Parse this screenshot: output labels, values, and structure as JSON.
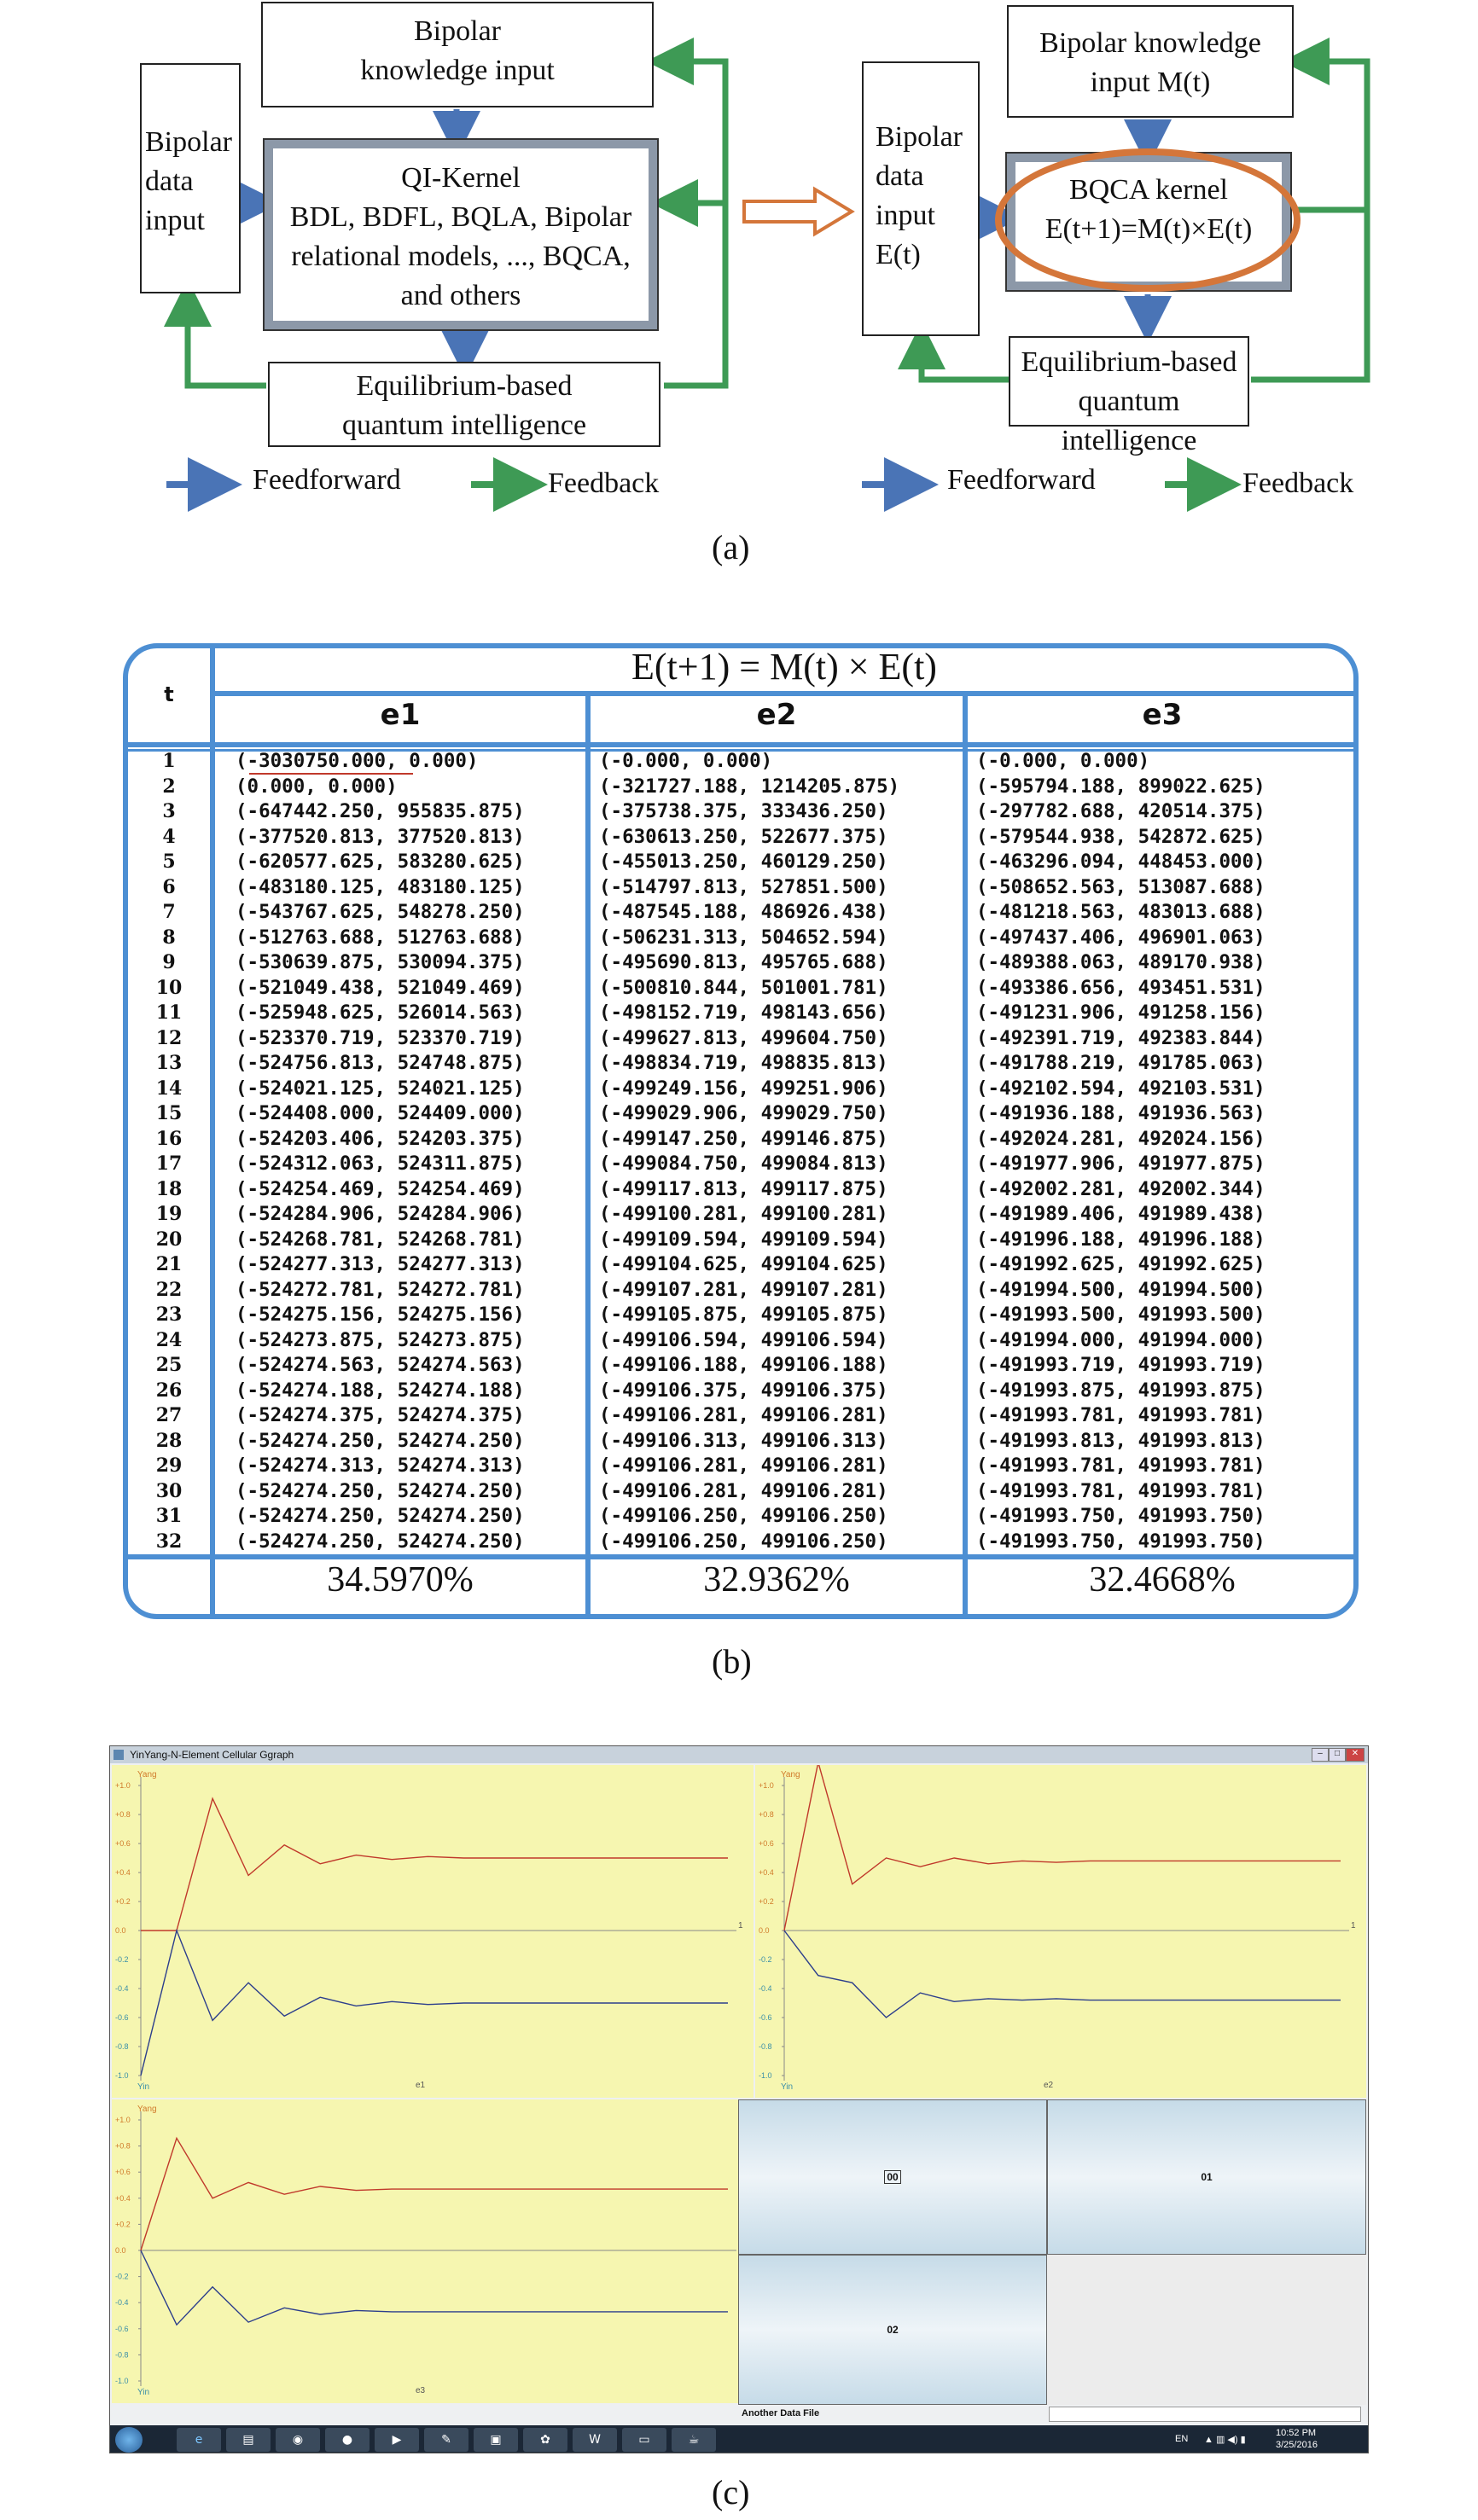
{
  "panel_a": {
    "left": {
      "knowledge_input": [
        "Bipolar",
        "knowledge input"
      ],
      "data_input": [
        "Bipolar",
        "data",
        "input"
      ],
      "kernel": [
        "QI-Kernel",
        "BDL, BDFL, BQLA, Bipolar",
        "relational models, ..., BQCA,",
        "and others"
      ],
      "equilibrium": [
        "Equilibrium-based",
        "quantum intelligence"
      ]
    },
    "right": {
      "knowledge_input": [
        "Bipolar knowledge",
        "input M(t)"
      ],
      "data_input": [
        "Bipolar",
        "data",
        "input",
        "E(t)"
      ],
      "kernel": [
        "BQCA kernel",
        "E(t+1)=M(t)×E(t)"
      ],
      "equilibrium": [
        "Equilibrium-based",
        "quantum intelligence"
      ]
    },
    "legend": {
      "feedforward": "Feedforward",
      "feedback": "Feedback"
    },
    "colors": {
      "feedforward": "#4a74b6",
      "feedback": "#3e9a55",
      "highlight": "#d4763a"
    },
    "caption": "(a)"
  },
  "panel_b": {
    "title": "E(t+1) = M(t) × E(t)",
    "t_header": "t",
    "col_headers": [
      "e1",
      "e2",
      "e3"
    ],
    "t_values": [
      "1",
      "2",
      "3",
      "4",
      "5",
      "6",
      "7",
      "8",
      "9",
      "10",
      "11",
      "12",
      "13",
      "14",
      "15",
      "16",
      "17",
      "18",
      "19",
      "20",
      "21",
      "22",
      "23",
      "24",
      "25",
      "26",
      "27",
      "28",
      "29",
      "30",
      "31",
      "32"
    ],
    "e1": [
      "(-3030750.000, 0.000)",
      "(0.000, 0.000)",
      "(-647442.250, 955835.875)",
      "(-377520.813, 377520.813)",
      "(-620577.625, 583280.625)",
      "(-483180.125, 483180.125)",
      "(-543767.625, 548278.250)",
      "(-512763.688, 512763.688)",
      "(-530639.875, 530094.375)",
      "(-521049.438, 521049.469)",
      "(-525948.625, 526014.563)",
      "(-523370.719, 523370.719)",
      "(-524756.813, 524748.875)",
      "(-524021.125, 524021.125)",
      "(-524408.000, 524409.000)",
      "(-524203.406, 524203.375)",
      "(-524312.063, 524311.875)",
      "(-524254.469, 524254.469)",
      "(-524284.906, 524284.906)",
      "(-524268.781, 524268.781)",
      "(-524277.313, 524277.313)",
      "(-524272.781, 524272.781)",
      "(-524275.156, 524275.156)",
      "(-524273.875, 524273.875)",
      "(-524274.563, 524274.563)",
      "(-524274.188, 524274.188)",
      "(-524274.375, 524274.375)",
      "(-524274.250, 524274.250)",
      "(-524274.313, 524274.313)",
      "(-524274.250, 524274.250)",
      "(-524274.250, 524274.250)",
      "(-524274.250, 524274.250)"
    ],
    "e2": [
      "(-0.000, 0.000)",
      "(-321727.188, 1214205.875)",
      "(-375738.375, 333436.250)",
      "(-630613.250, 522677.375)",
      "(-455013.250, 460129.250)",
      "(-514797.813, 527851.500)",
      "(-487545.188, 486926.438)",
      "(-506231.313, 504652.594)",
      "(-495690.813, 495765.688)",
      "(-500810.844, 501001.781)",
      "(-498152.719, 498143.656)",
      "(-499627.813, 499604.750)",
      "(-498834.719, 498835.813)",
      "(-499249.156, 499251.906)",
      "(-499029.906, 499029.750)",
      "(-499147.250, 499146.875)",
      "(-499084.750, 499084.813)",
      "(-499117.813, 499117.875)",
      "(-499100.281, 499100.281)",
      "(-499109.594, 499109.594)",
      "(-499104.625, 499104.625)",
      "(-499107.281, 499107.281)",
      "(-499105.875, 499105.875)",
      "(-499106.594, 499106.594)",
      "(-499106.188, 499106.188)",
      "(-499106.375, 499106.375)",
      "(-499106.281, 499106.281)",
      "(-499106.313, 499106.313)",
      "(-499106.281, 499106.281)",
      "(-499106.281, 499106.281)",
      "(-499106.250, 499106.250)",
      "(-499106.250, 499106.250)"
    ],
    "e3": [
      "(-0.000, 0.000)",
      "(-595794.188, 899022.625)",
      "(-297782.688, 420514.375)",
      "(-579544.938, 542872.625)",
      "(-463296.094, 448453.000)",
      "(-508652.563, 513087.688)",
      "(-481218.563, 483013.688)",
      "(-497437.406, 496901.063)",
      "(-489388.063, 489170.938)",
      "(-493386.656, 493451.531)",
      "(-491231.906, 491258.156)",
      "(-492391.719, 492383.844)",
      "(-491788.219, 491785.063)",
      "(-492102.594, 492103.531)",
      "(-491936.188, 491936.563)",
      "(-492024.281, 492024.156)",
      "(-491977.906, 491977.875)",
      "(-492002.281, 492002.344)",
      "(-491989.406, 491989.438)",
      "(-491996.188, 491996.188)",
      "(-491992.625, 491992.625)",
      "(-491994.500, 491994.500)",
      "(-491993.500, 491993.500)",
      "(-491994.000, 491994.000)",
      "(-491993.719, 491993.719)",
      "(-491993.875, 491993.875)",
      "(-491993.781, 491993.781)",
      "(-491993.813, 491993.813)",
      "(-491993.781, 491993.781)",
      "(-491993.781, 491993.781)",
      "(-491993.750, 491993.750)",
      "(-491993.750, 491993.750)"
    ],
    "percentages": [
      "34.5970%",
      "32.9362%",
      "32.4668%"
    ],
    "caption": "(b)"
  },
  "panel_c": {
    "window_title": "YinYang-N-Element Cellular Ggraph",
    "chart_data": [
      {
        "type": "line",
        "xlabel": "e1",
        "axis_top": "Yang",
        "axis_bottom": "Yin",
        "x_end_label": "1",
        "ylim": [
          -1.0,
          1.0
        ],
        "yticks": [
          "+1.0",
          "+0.8",
          "+0.6",
          "+0.4",
          "+0.2",
          "0.0",
          "-0.2",
          "-0.4",
          "-0.6",
          "-0.8",
          "-1.0"
        ],
        "series": [
          {
            "color": "#c0392b",
            "values": [
              0.0,
              0.0,
              0.91,
              0.38,
              0.59,
              0.46,
              0.52,
              0.49,
              0.51,
              0.5,
              0.5,
              0.5,
              0.5,
              0.5,
              0.5,
              0.5
            ]
          },
          {
            "color": "#2c3e8c",
            "values": [
              -1.0,
              0.0,
              -0.62,
              -0.36,
              -0.59,
              -0.46,
              -0.52,
              -0.49,
              -0.51,
              -0.5,
              -0.5,
              -0.5,
              -0.5,
              -0.5,
              -0.5,
              -0.5
            ]
          }
        ]
      },
      {
        "type": "line",
        "xlabel": "e2",
        "axis_top": "Yang",
        "axis_bottom": "Yin",
        "x_end_label": "1",
        "ylim": [
          -1.0,
          1.0
        ],
        "yticks": [
          "+1.0",
          "+0.8",
          "+0.6",
          "+0.4",
          "+0.2",
          "0.0",
          "-0.2",
          "-0.4",
          "-0.6",
          "-0.8",
          "-1.0"
        ],
        "series": [
          {
            "color": "#c0392b",
            "values": [
              0.0,
              1.16,
              0.32,
              0.5,
              0.44,
              0.5,
              0.46,
              0.48,
              0.47,
              0.48,
              0.48,
              0.48,
              0.48,
              0.48,
              0.48,
              0.48
            ]
          },
          {
            "color": "#2c3e8c",
            "values": [
              0.0,
              -0.31,
              -0.36,
              -0.6,
              -0.43,
              -0.49,
              -0.47,
              -0.48,
              -0.47,
              -0.48,
              -0.48,
              -0.48,
              -0.48,
              -0.48,
              -0.48,
              -0.48
            ]
          }
        ]
      },
      {
        "type": "line",
        "xlabel": "e3",
        "axis_top": "Yang",
        "axis_bottom": "Yin",
        "x_end_label": "1",
        "ylim": [
          -1.0,
          1.0
        ],
        "yticks": [
          "+1.0",
          "+0.8",
          "+0.6",
          "+0.4",
          "+0.2",
          "0.0",
          "-0.2",
          "-0.4",
          "-0.6",
          "-0.8",
          "-1.0"
        ],
        "series": [
          {
            "color": "#c0392b",
            "values": [
              0.0,
              0.86,
              0.4,
              0.52,
              0.43,
              0.49,
              0.46,
              0.47,
              0.47,
              0.47,
              0.47,
              0.47,
              0.47,
              0.47,
              0.47,
              0.47
            ]
          },
          {
            "color": "#2c3e8c",
            "values": [
              0.0,
              -0.57,
              -0.28,
              -0.55,
              -0.44,
              -0.49,
              -0.46,
              -0.47,
              -0.47,
              -0.47,
              -0.47,
              -0.47,
              -0.47,
              -0.47,
              -0.47,
              -0.47
            ]
          }
        ]
      }
    ],
    "cells": [
      "00",
      "01",
      "02"
    ],
    "footer_label": "Another Data File",
    "taskbar": {
      "lang": "EN",
      "time": "10:52 PM",
      "date": "3/25/2016"
    },
    "caption": "(c)"
  }
}
